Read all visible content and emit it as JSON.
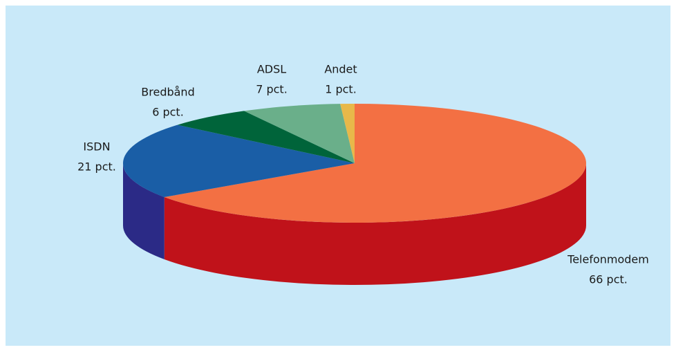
{
  "chart_data": {
    "type": "pie3d",
    "categories": [
      "Telefonmodem",
      "ISDN",
      "Bredbånd",
      "ADSL",
      "Andet"
    ],
    "values": [
      66,
      21,
      6,
      7,
      1
    ],
    "value_labels": [
      "66 pct.",
      "21 pct.",
      "6 pct.",
      "7 pct.",
      "1 pct."
    ],
    "colors": [
      "#f37043",
      "#1a5ea6",
      "#00643a",
      "#6aaf8a",
      "#e8b84a"
    ],
    "side_colors": [
      "#c0121a",
      "#2b2a86",
      "#004a2b",
      "#4f8a6a",
      "#b58a2a"
    ]
  }
}
